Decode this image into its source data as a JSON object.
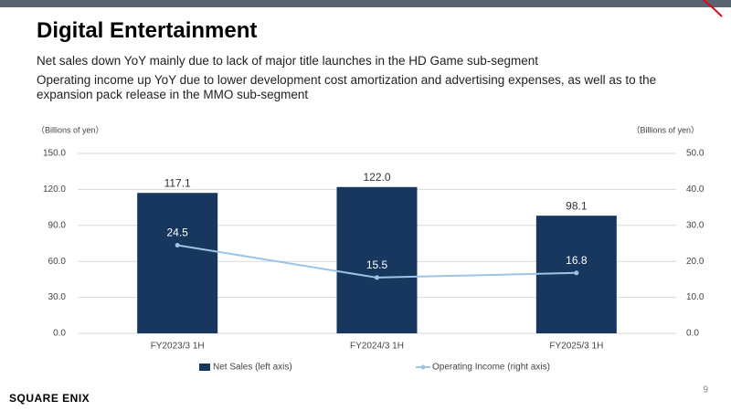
{
  "title": "Digital Entertainment",
  "bullets": [
    "Net sales down YoY mainly due to lack of major title launches in the HD Game sub-segment",
    "Operating income up YoY due to lower development cost amortization and advertising expenses, as well as to the expansion pack release in the MMO sub-segment"
  ],
  "page_number": "9",
  "logo": "SQUARE ENIX",
  "chart_data": {
    "type": "bar_line",
    "y_label": "（Billions of yen）",
    "y2_label": "（Billions of yen）",
    "categories": [
      "FY2023/3 1H",
      "FY2024/3 1H",
      "FY2025/3 1H"
    ],
    "series": [
      {
        "name": "Net Sales (left axis)",
        "type": "bar",
        "color": "#17375e",
        "values": [
          117.1,
          122.0,
          98.1
        ],
        "value_labels": [
          "117.1",
          "122.0",
          "98.1"
        ]
      },
      {
        "name": "Operating Income (right axis)",
        "type": "line",
        "axis": "y2",
        "color": "#9dc3e6",
        "values": [
          24.5,
          15.5,
          16.8
        ]
      }
    ],
    "ylim": [
      0,
      150
    ],
    "yticks": [
      {
        "value": 0,
        "label": "0.0"
      },
      {
        "value": 30,
        "label": "30.0"
      },
      {
        "value": 60,
        "label": "60.0"
      },
      {
        "value": 90,
        "label": "90.0"
      },
      {
        "value": 120,
        "label": "120.0"
      },
      {
        "value": 150,
        "label": "150.0"
      }
    ],
    "y2lim": [
      0,
      50
    ],
    "y2ticks": [
      {
        "value": 0,
        "label": "0.0"
      },
      {
        "value": 10,
        "label": "10.0"
      },
      {
        "value": 20,
        "label": "20.0"
      },
      {
        "value": 30,
        "label": "30.0"
      },
      {
        "value": 40,
        "label": "40.0"
      },
      {
        "value": 50,
        "label": "50.0"
      }
    ],
    "grid": true,
    "legend": "bottom"
  }
}
